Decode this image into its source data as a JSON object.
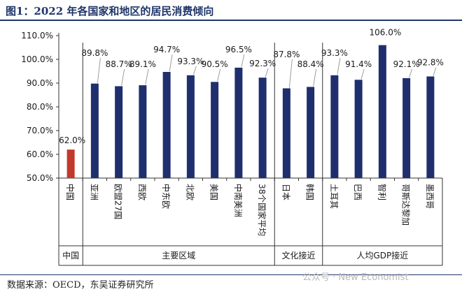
{
  "title": "图1：2022 年各国家和地区的居民消费倾向",
  "source": "数据来源：OECD，东吴证券研究所",
  "watermark": "公众号 · New Economist",
  "colors": {
    "highlight": "#c0392b",
    "bar": "#1f2f6e",
    "axis": "#333333",
    "text": "#1a1a1a"
  },
  "chart_data": {
    "type": "bar",
    "ylim": [
      50,
      110
    ],
    "yticks": [
      50,
      60,
      70,
      80,
      90,
      100,
      110
    ],
    "ytick_labels": [
      "50.0%",
      "60.0%",
      "70.0%",
      "80.0%",
      "90.0%",
      "100.0%",
      "110.0%"
    ],
    "categories": [
      "中国",
      "亚洲",
      "欧盟27国",
      "西欧",
      "中东欧",
      "北欧",
      "美国",
      "中南美洲",
      "38个国家平均",
      "日本",
      "韩国",
      "土耳其",
      "巴西",
      "智利",
      "哥斯达黎加",
      "墨西哥"
    ],
    "values": [
      62.0,
      89.8,
      88.7,
      89.1,
      94.7,
      93.3,
      90.5,
      96.5,
      92.3,
      87.8,
      88.4,
      93.3,
      91.4,
      106.0,
      92.1,
      92.8
    ],
    "data_labels": [
      "62.0%",
      "89.8%",
      "88.7%",
      "89.1%",
      "94.7%",
      "93.3%",
      "90.5%",
      "96.5%",
      "92.3%",
      "87.8%",
      "88.4%",
      "93.3%",
      "91.4%",
      "106.0%",
      "92.1%",
      "92.8%"
    ],
    "groups": [
      {
        "label": "中国",
        "count": 1
      },
      {
        "label": "主要区域",
        "count": 8
      },
      {
        "label": "文化接近",
        "count": 2
      },
      {
        "label": "人均GDP接近",
        "count": 5
      }
    ],
    "highlight_index": 0
  }
}
